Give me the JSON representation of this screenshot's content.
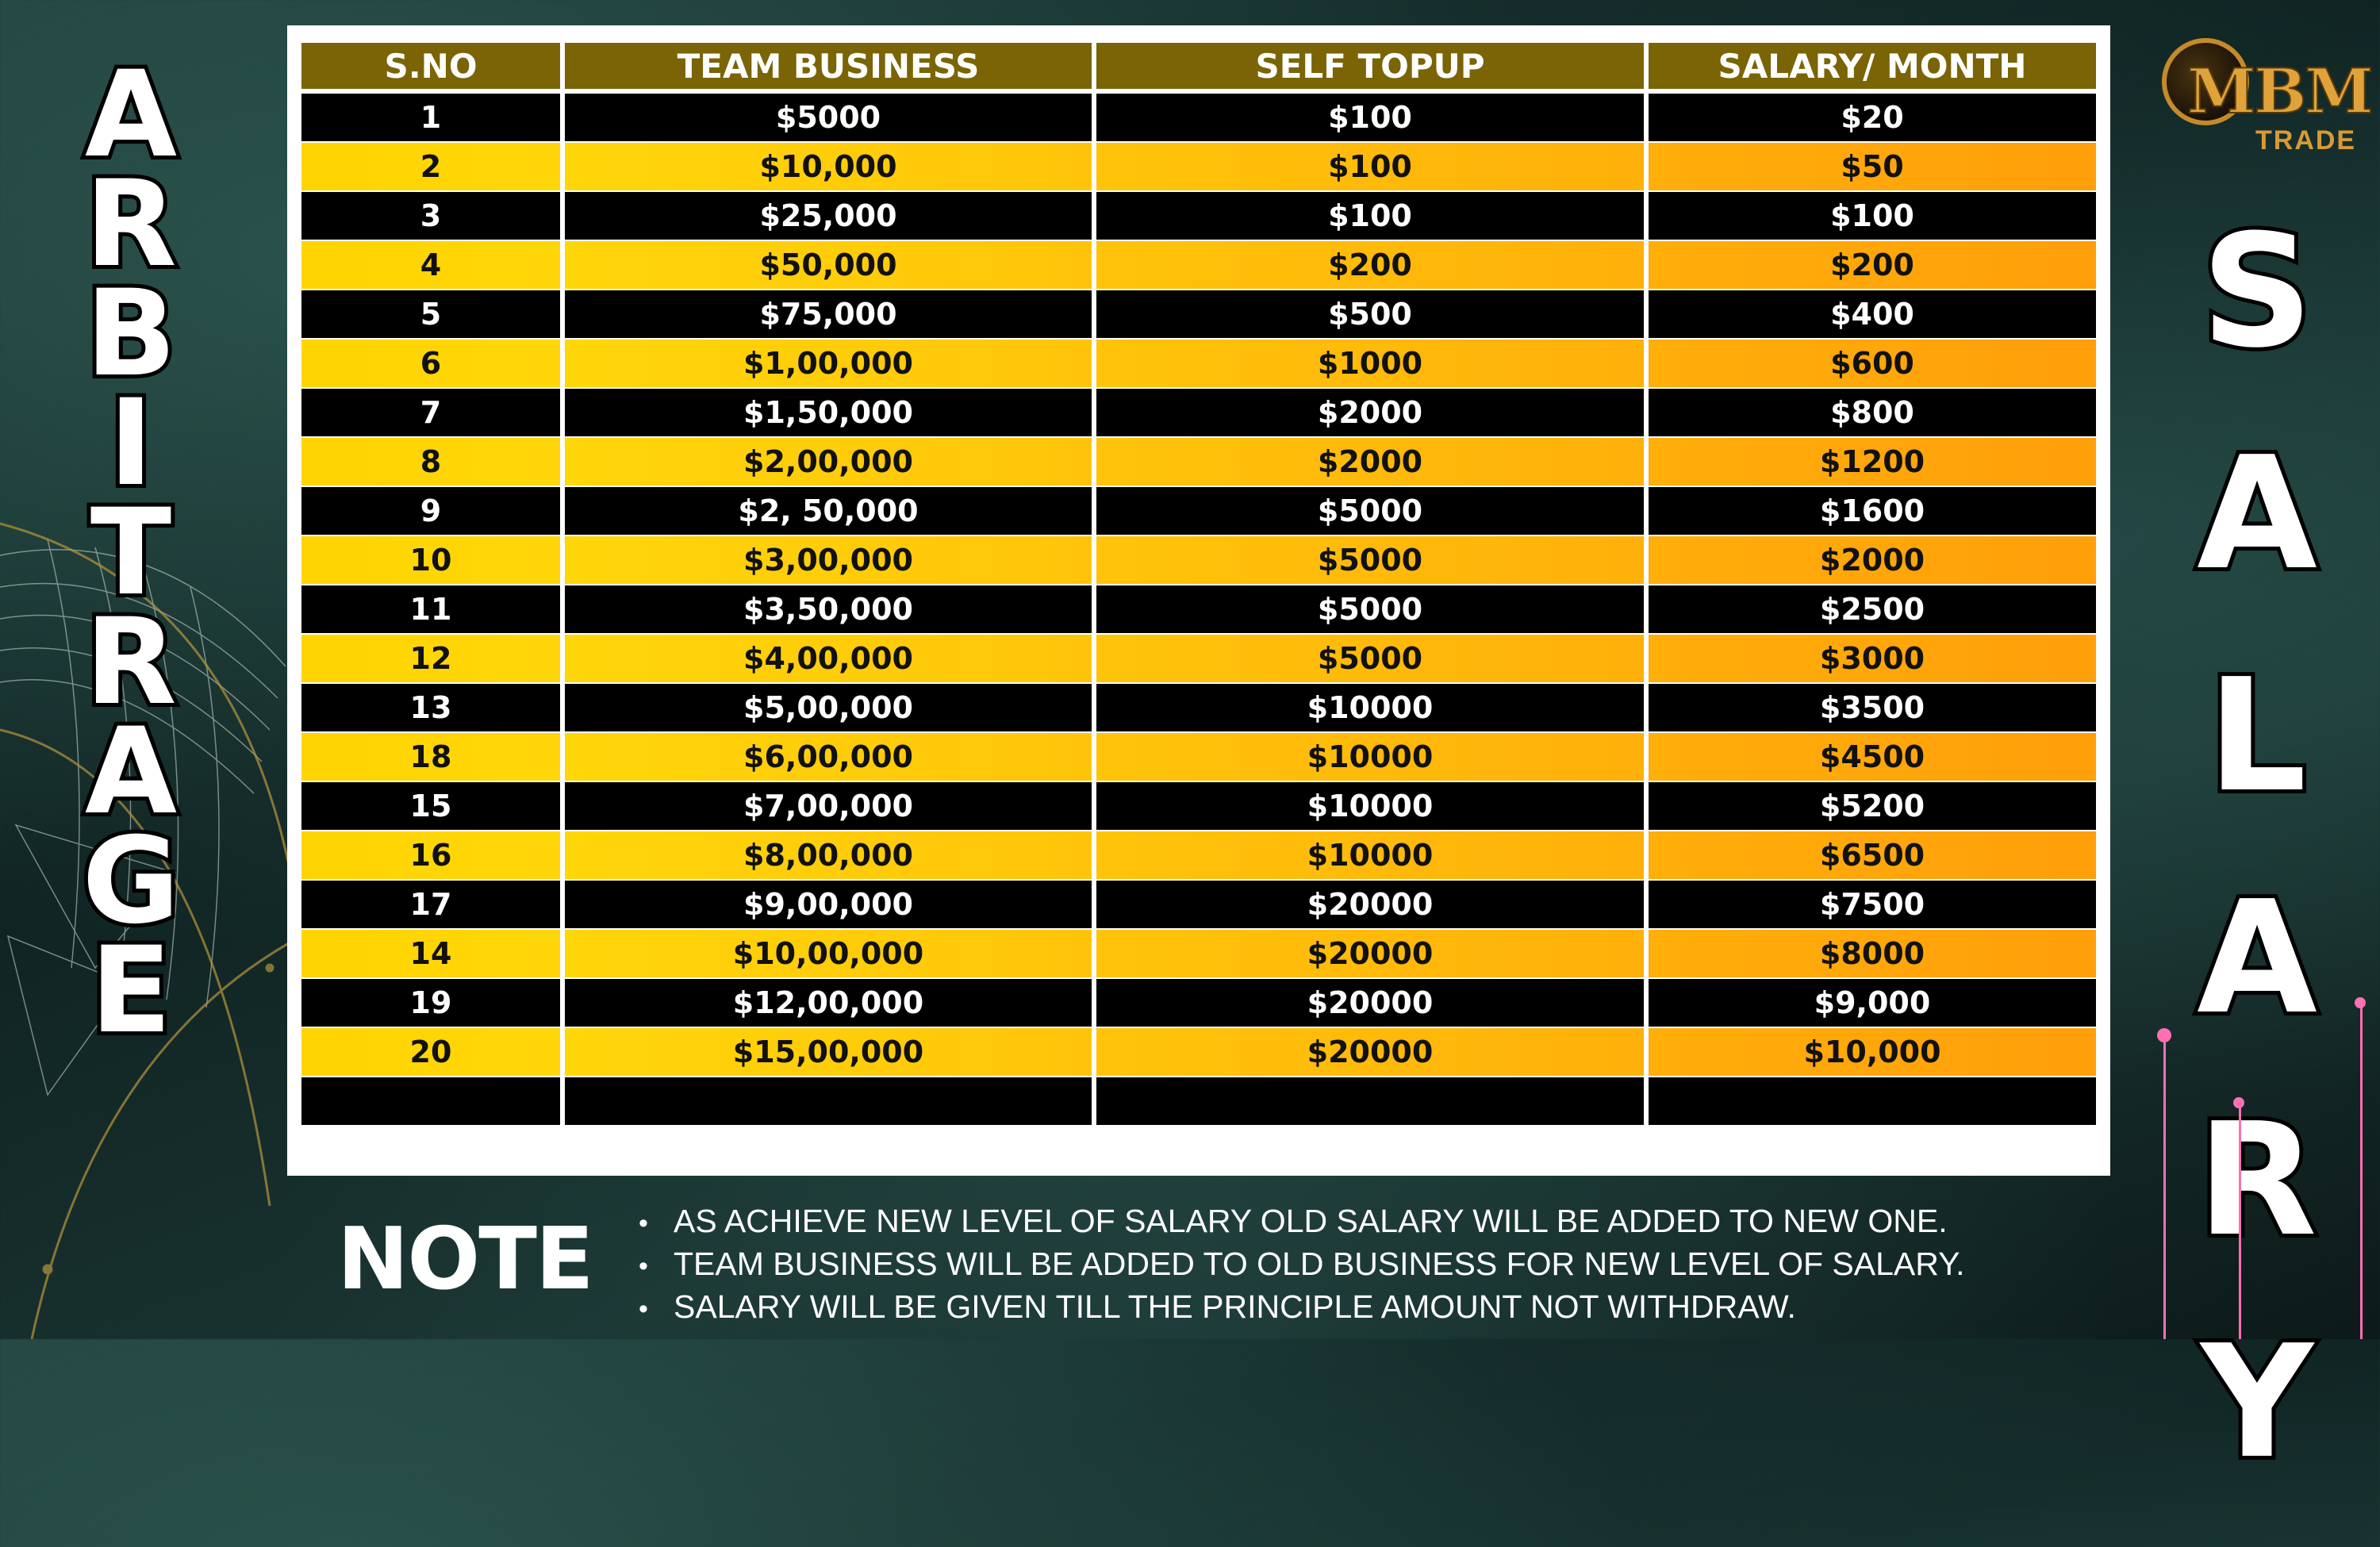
{
  "left_title": [
    "A",
    "R",
    "B",
    "I",
    "T",
    "R",
    "A",
    "G",
    "E"
  ],
  "right_title": [
    "S",
    "A",
    "L",
    "A",
    "R",
    "Y"
  ],
  "logo": {
    "text": "MBM",
    "subtext": "TRADE"
  },
  "table": {
    "headers": [
      "S.NO",
      "TEAM BUSINESS",
      "SELF TOPUP",
      "SALARY/ MONTH"
    ],
    "rows": [
      [
        "1",
        "$5000",
        "$100",
        "$20"
      ],
      [
        "2",
        "$10,000",
        "$100",
        "$50"
      ],
      [
        "3",
        "$25,000",
        "$100",
        "$100"
      ],
      [
        "4",
        "$50,000",
        "$200",
        "$200"
      ],
      [
        "5",
        "$75,000",
        "$500",
        "$400"
      ],
      [
        "6",
        "$1,00,000",
        "$1000",
        "$600"
      ],
      [
        "7",
        "$1,50,000",
        "$2000",
        "$800"
      ],
      [
        "8",
        "$2,00,000",
        "$2000",
        "$1200"
      ],
      [
        "9",
        "$2, 50,000",
        "$5000",
        "$1600"
      ],
      [
        "10",
        "$3,00,000",
        "$5000",
        "$2000"
      ],
      [
        "11",
        "$3,50,000",
        "$5000",
        "$2500"
      ],
      [
        "12",
        "$4,00,000",
        "$5000",
        "$3000"
      ],
      [
        "13",
        "$5,00,000",
        "$10000",
        "$3500"
      ],
      [
        "18",
        "$6,00,000",
        "$10000",
        "$4500"
      ],
      [
        "15",
        "$7,00,000",
        "$10000",
        "$5200"
      ],
      [
        "16",
        "$8,00,000",
        "$10000",
        "$6500"
      ],
      [
        "17",
        "$9,00,000",
        "$20000",
        "$7500"
      ],
      [
        "14",
        "$10,00,000",
        "$20000",
        "$8000"
      ],
      [
        "19",
        "$12,00,000",
        "$20000",
        "$9,000"
      ],
      [
        "20",
        "$15,00,000",
        "$20000",
        "$10,000"
      ],
      [
        "",
        "",
        "",
        ""
      ]
    ]
  },
  "note": {
    "title": "NOTE",
    "items": [
      "AS ACHIEVE NEW LEVEL OF SALARY OLD SALARY WILL BE ADDED TO NEW ONE.",
      "TEAM BUSINESS WILL BE ADDED TO OLD BUSINESS FOR NEW LEVEL OF SALARY.",
      "SALARY WILL BE GIVEN TILL THE PRINCIPLE AMOUNT NOT WITHDRAW."
    ],
    "bullet": "•"
  },
  "colors": {
    "header_bg": "#7a6406",
    "dark_row": "#000000",
    "gold_row_start": "#ffd400",
    "gold_row_end": "#ff9f0a",
    "accent_pink": "#ff6fb4"
  }
}
